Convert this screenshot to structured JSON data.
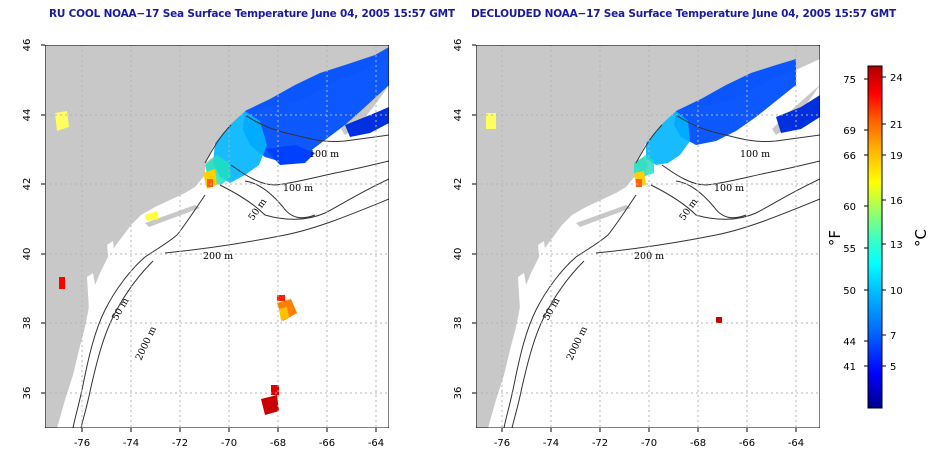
{
  "panels": [
    {
      "id": "left",
      "title": "RU COOL NOAA−17 Sea Surface Temperature June 04, 2005 15:57 GMT"
    },
    {
      "id": "right",
      "title": "DECLOUDED NOAA−17 Sea Surface Temperature June 04, 2005 15:57 GMT"
    }
  ],
  "axes": {
    "x_ticks": [
      "-76",
      "-74",
      "-72",
      "-70",
      "-68",
      "-66",
      "-64"
    ],
    "y_ticks": [
      "36",
      "38",
      "40",
      "42",
      "44",
      "46"
    ],
    "x_range": [
      -77.1,
      -63.0
    ],
    "y_range": [
      35.0,
      46.0
    ]
  },
  "contour_labels": {
    "m100a": "100 m",
    "m100b": "100 m",
    "m50a": "50 m",
    "m200": "200 m",
    "m50b": "50 m",
    "m2000": "2000 m"
  },
  "colorbar": {
    "fahrenheit_unit": "°F",
    "celsius_unit": "°C",
    "fahrenheit_ticks": [
      "75",
      "69",
      "66",
      "60",
      "55",
      "50",
      "44",
      "41"
    ],
    "celsius_ticks": [
      "24",
      "21",
      "19",
      "16",
      "13",
      "10",
      "7",
      "5"
    ],
    "colors": [
      "#00008b",
      "#0000ff",
      "#0066ff",
      "#00b4ff",
      "#00ffff",
      "#40ffc0",
      "#a0ff60",
      "#ffff00",
      "#ffb000",
      "#ff6000",
      "#ff0000",
      "#b00000"
    ]
  },
  "colors": {
    "land": "#c8c8c8",
    "water": "#ffffff",
    "grid": "#b4b4b4",
    "title": "#1a1a9c"
  }
}
